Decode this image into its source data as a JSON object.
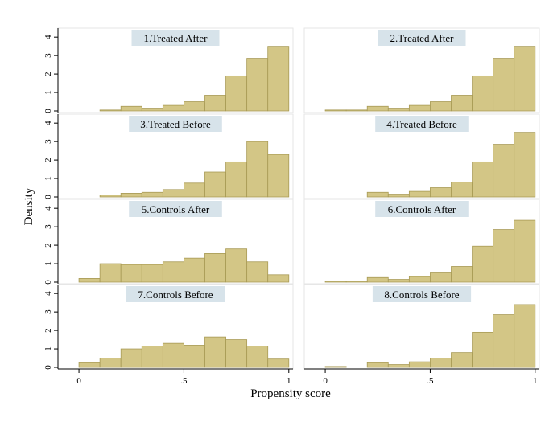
{
  "chart_data": {
    "type": "histogram-grid",
    "xlabel": "Propensity score",
    "ylabel": "Density",
    "xlim": [
      -0.1,
      1.02
    ],
    "ylim": [
      0,
      4.4
    ],
    "bin_edges": [
      0,
      0.1,
      0.2,
      0.3,
      0.4,
      0.5,
      0.6,
      0.7,
      0.8,
      0.9,
      1.0
    ],
    "x_ticks": [
      {
        "value": 0,
        "label": "0"
      },
      {
        "value": 0.5,
        "label": ".5"
      },
      {
        "value": 1,
        "label": "1"
      }
    ],
    "y_ticks": [
      {
        "value": 0,
        "label": "0"
      },
      {
        "value": 1,
        "label": "1"
      },
      {
        "value": 2,
        "label": "2"
      },
      {
        "value": 3,
        "label": "3"
      },
      {
        "value": 4,
        "label": "4"
      }
    ],
    "bar_color": "#d3c686",
    "bar_edge_color": "#a89a55",
    "title_bg": "#d7e3ea",
    "panels": [
      {
        "title": "1.Treated After",
        "values": [
          0.0,
          0.05,
          0.25,
          0.15,
          0.3,
          0.5,
          0.85,
          1.9,
          2.85,
          3.5
        ]
      },
      {
        "title": "2.Treated After",
        "values": [
          0.05,
          0.05,
          0.25,
          0.15,
          0.3,
          0.5,
          0.85,
          1.9,
          2.85,
          3.5
        ]
      },
      {
        "title": "3.Treated Before",
        "values": [
          0.0,
          0.1,
          0.2,
          0.25,
          0.4,
          0.75,
          1.35,
          1.9,
          3.0,
          2.3
        ]
      },
      {
        "title": "4.Treated Before",
        "values": [
          0.0,
          0.0,
          0.25,
          0.15,
          0.3,
          0.5,
          0.8,
          1.9,
          2.85,
          3.5
        ]
      },
      {
        "title": "5.Controls After",
        "values": [
          0.2,
          1.0,
          0.95,
          0.95,
          1.1,
          1.3,
          1.55,
          1.8,
          1.1,
          0.4
        ]
      },
      {
        "title": "6.Controls After",
        "values": [
          0.05,
          0.05,
          0.25,
          0.15,
          0.3,
          0.5,
          0.85,
          1.95,
          2.85,
          3.35
        ]
      },
      {
        "title": "7.Controls Before",
        "values": [
          0.25,
          0.5,
          1.0,
          1.15,
          1.3,
          1.2,
          1.65,
          1.5,
          1.15,
          0.45
        ]
      },
      {
        "title": "8.Controls Before",
        "values": [
          0.05,
          0.0,
          0.25,
          0.15,
          0.3,
          0.5,
          0.8,
          1.9,
          2.85,
          3.4
        ]
      }
    ]
  }
}
